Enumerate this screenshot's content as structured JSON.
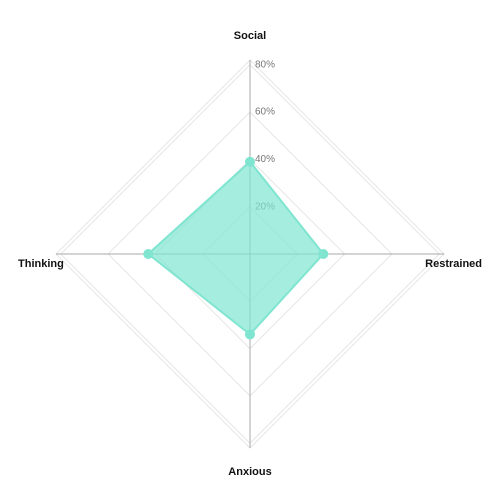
{
  "chart_data": {
    "type": "radar",
    "categories": [
      "Social",
      "Restrained",
      "Anxious",
      "Thinking"
    ],
    "values": [
      39,
      31,
      34,
      43
    ],
    "color": "#7fe5d0",
    "rlim": [
      0,
      82
    ],
    "rticks": [
      {
        "value": 20,
        "label": "20%"
      },
      {
        "value": 40,
        "label": "40%"
      },
      {
        "value": 60,
        "label": "60%"
      },
      {
        "value": 80,
        "label": "80%"
      }
    ],
    "grid": true
  }
}
